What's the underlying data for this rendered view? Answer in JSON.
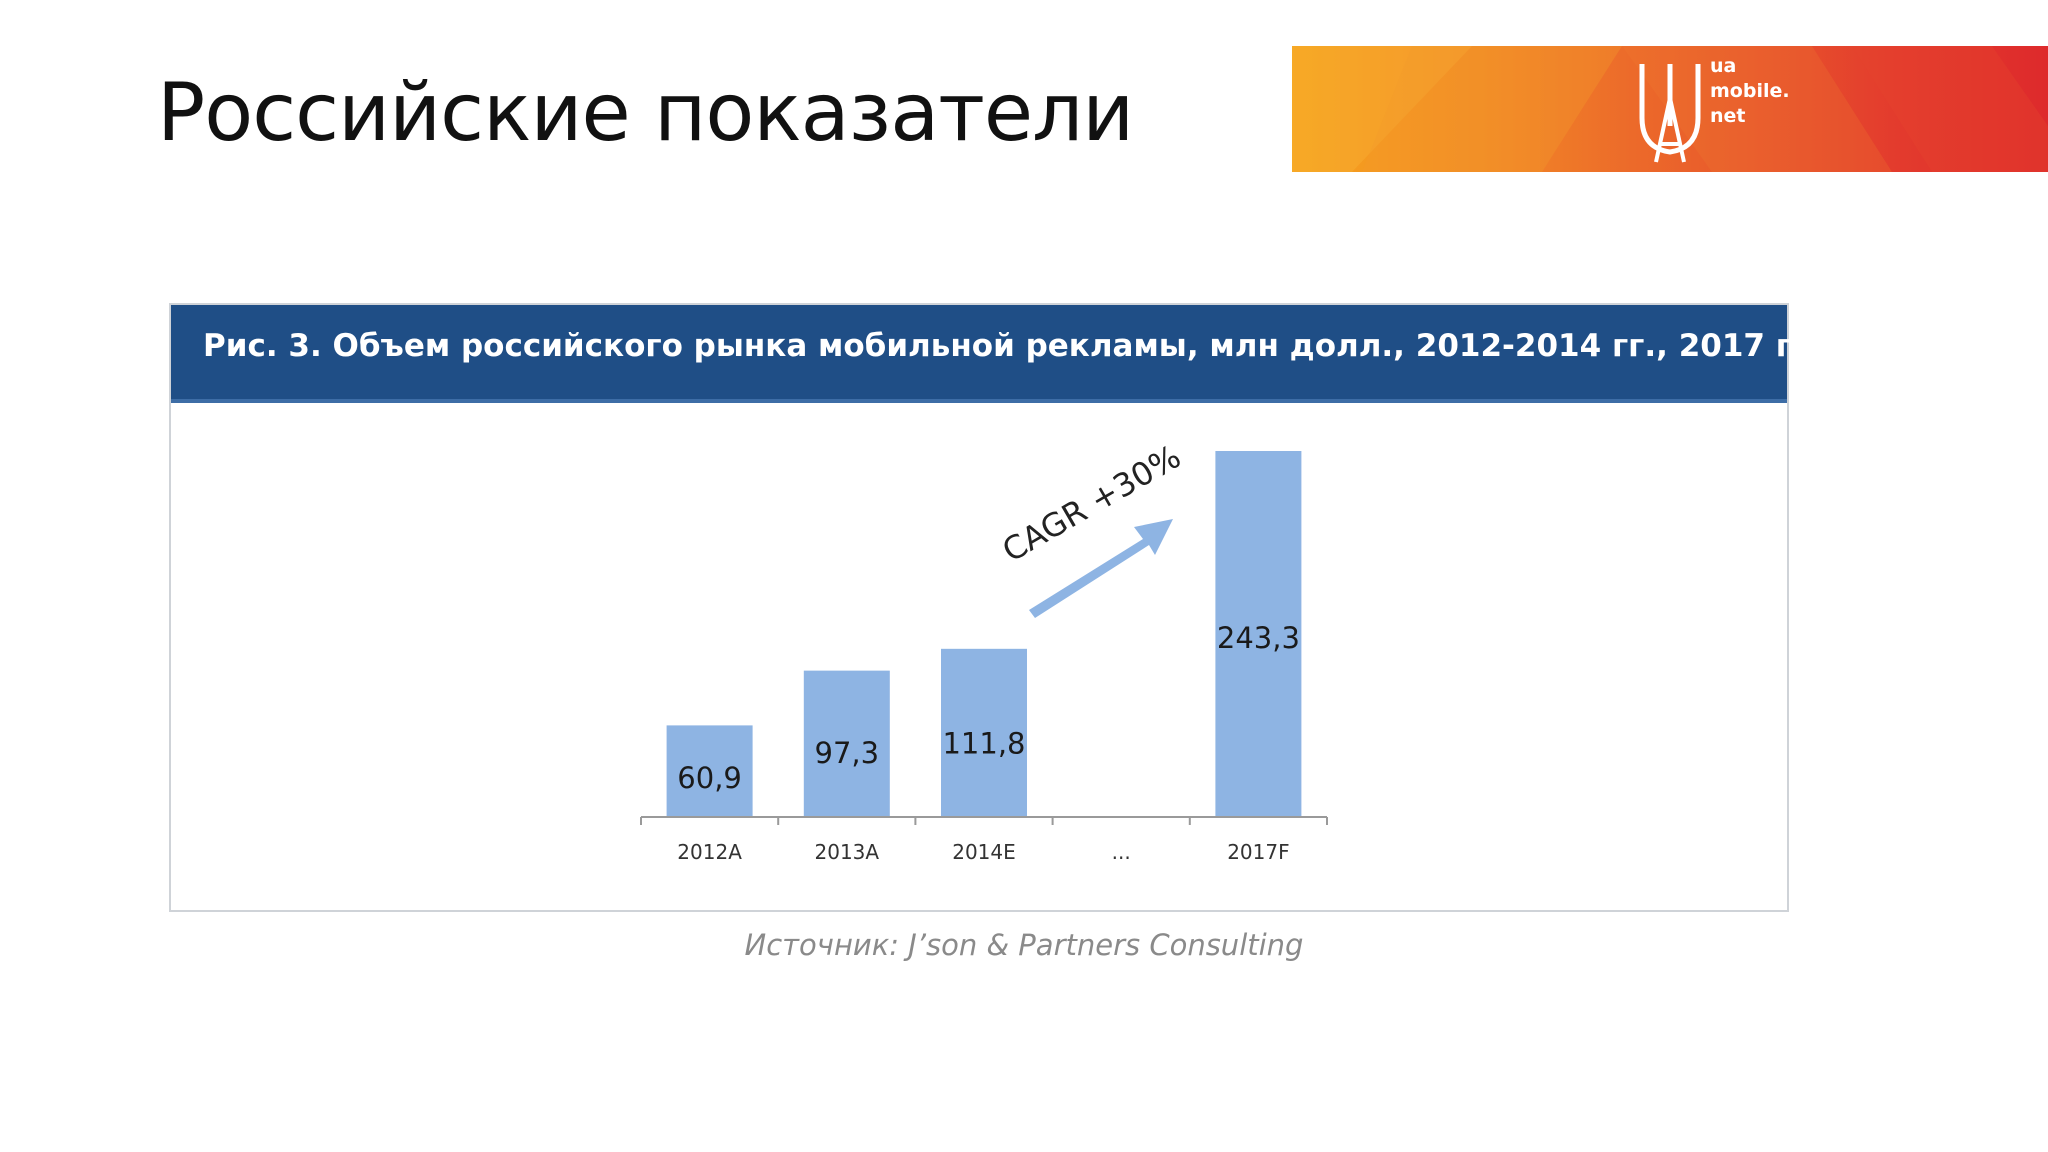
{
  "slide": {
    "title": "Российские показатели",
    "source": "Источник: J’son & Partners Consulting"
  },
  "brand": {
    "logo_lines": [
      "ua",
      "mobile.",
      "net"
    ],
    "logo_icon": "ua-mobile-logo-icon",
    "colors": {
      "start": "#f6a31c",
      "mid": "#ec6a2a",
      "end": "#de2a2c"
    }
  },
  "chart_data": {
    "type": "bar",
    "title": "Рис. 3. Объем российского рынка мобильной рекламы, млн долл., 2012-2014 гг., 2017 г.",
    "categories": [
      "2012A",
      "2013A",
      "2014E",
      "...",
      "2017F"
    ],
    "values": [
      60.9,
      97.3,
      111.8,
      null,
      243.3
    ],
    "value_labels": [
      "60,9",
      "97,3",
      "111,8",
      "",
      "243,3"
    ],
    "annotation": "CAGR +30%",
    "ylim": [
      0,
      243.3
    ],
    "grid": false,
    "colors": {
      "bar": "#8eb4e3",
      "header": "#1f4e86",
      "arrow": "#8eb4e3"
    }
  }
}
